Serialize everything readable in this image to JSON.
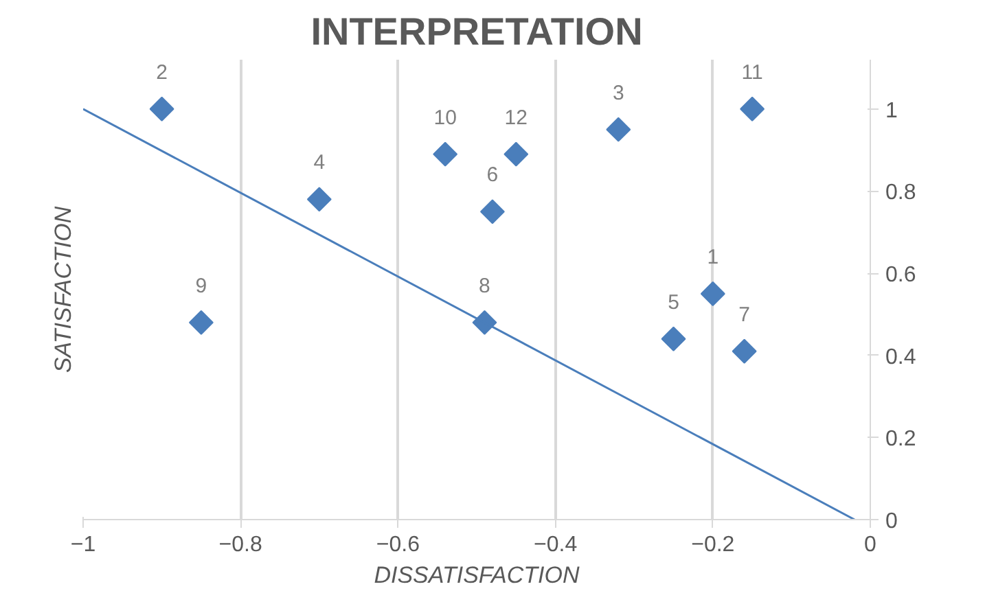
{
  "chart_data": {
    "type": "scatter",
    "title": "INTERPRETATION",
    "xlabel": "DISSATISFACTION",
    "ylabel": "SATISFACTION",
    "xlim": [
      -1,
      0
    ],
    "ylim": [
      0,
      1.12
    ],
    "xticks": [
      -1,
      -0.8,
      -0.6,
      -0.4,
      -0.2,
      0
    ],
    "yticks": [
      0,
      0.2,
      0.4,
      0.6,
      0.8,
      1
    ],
    "grid": "x",
    "series": [
      {
        "marker": "diamond",
        "color": "#4a7ebb",
        "x": [
          -0.2,
          -0.9,
          -0.32,
          -0.7,
          -0.25,
          -0.48,
          -0.16,
          -0.49,
          -0.85,
          -0.54,
          -0.15,
          -0.45
        ],
        "values": [
          0.55,
          1.0,
          0.95,
          0.78,
          0.44,
          0.75,
          0.41,
          0.48,
          0.48,
          0.89,
          1.0,
          0.89
        ]
      },
      {
        "type": "line",
        "color": "#4a7ebb",
        "x": [
          -1,
          -0.02
        ],
        "values": [
          1,
          0
        ]
      }
    ],
    "annotations": [
      {
        "text": "1",
        "x": -0.2,
        "y": 0.55
      },
      {
        "text": "2",
        "x": -0.9,
        "y": 1.0
      },
      {
        "text": "3",
        "x": -0.32,
        "y": 0.95
      },
      {
        "text": "4",
        "x": -0.7,
        "y": 0.78
      },
      {
        "text": "5",
        "x": -0.25,
        "y": 0.44
      },
      {
        "text": "6",
        "x": -0.48,
        "y": 0.75
      },
      {
        "text": "7",
        "x": -0.16,
        "y": 0.41
      },
      {
        "text": "8",
        "x": -0.49,
        "y": 0.48
      },
      {
        "text": "9",
        "x": -0.85,
        "y": 0.48
      },
      {
        "text": "10",
        "x": -0.54,
        "y": 0.89
      },
      {
        "text": "11",
        "x": -0.15,
        "y": 1.0
      },
      {
        "text": "12",
        "x": -0.45,
        "y": 0.89
      }
    ]
  }
}
